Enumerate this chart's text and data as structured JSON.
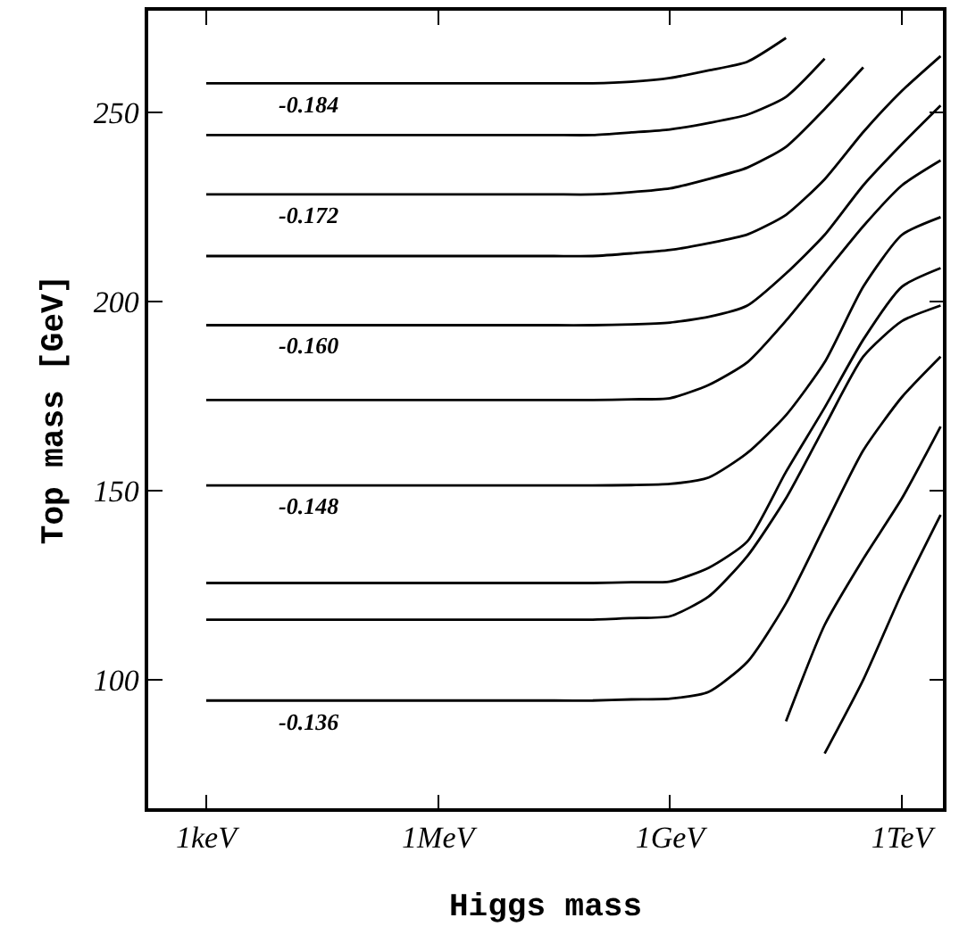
{
  "chart_data": {
    "type": "line",
    "xlabel": "Higgs mass",
    "ylabel": "Top mass [GeV]",
    "grid": false,
    "marker": "none",
    "line_style": "solid",
    "categories": [
      "1keV",
      null,
      null,
      null,
      null,
      null,
      "1MeV",
      null,
      null,
      null,
      null,
      null,
      "1GeV",
      null,
      null,
      null,
      null,
      null,
      "1TeV",
      null
    ],
    "ylim": [
      66,
      277
    ],
    "yticks": [
      100,
      150,
      200,
      250
    ],
    "series": [
      {
        "color": "#000000",
        "values": [
          257.8,
          257.8,
          257.8,
          257.8,
          257.8,
          257.8,
          257.8,
          257.8,
          257.8,
          257.8,
          257.8,
          258.2,
          259.2,
          261.2,
          263.5,
          269.8,
          null,
          null,
          null,
          null
        ]
      },
      {
        "color": "#000000",
        "values": [
          244.1,
          244.1,
          244.1,
          244.1,
          244.1,
          244.1,
          244.1,
          244.1,
          244.1,
          244.1,
          244.1,
          244.8,
          245.6,
          247.3,
          249.5,
          254.2,
          264.3,
          null,
          null,
          null
        ]
      },
      {
        "color": "#000000",
        "values": [
          228.4,
          228.4,
          228.4,
          228.4,
          228.4,
          228.4,
          228.4,
          228.4,
          228.4,
          228.4,
          228.4,
          229,
          230,
          232.5,
          235.5,
          241,
          251,
          262,
          null,
          null
        ]
      },
      {
        "color": "#000000",
        "values": [
          212.1,
          212.1,
          212.1,
          212.1,
          212.1,
          212.1,
          212.1,
          212.1,
          212.1,
          212.1,
          212.1,
          212.8,
          213.7,
          215.5,
          217.8,
          223,
          232.4,
          244.9,
          255.8,
          265
        ]
      },
      {
        "color": "#000000",
        "values": [
          193.8,
          193.8,
          193.8,
          193.8,
          193.8,
          193.8,
          193.8,
          193.8,
          193.8,
          193.8,
          193.8,
          194,
          194.5,
          196,
          199,
          207.5,
          217.7,
          230.8,
          241.7,
          251.9
        ]
      },
      {
        "color": "#000000",
        "values": [
          174,
          174,
          174,
          174,
          174,
          174,
          174,
          174,
          174,
          174,
          174,
          174.2,
          174.5,
          178,
          184,
          195,
          207.5,
          220,
          230.8,
          237.4
        ]
      },
      {
        "color": "#000000",
        "values": [
          151.4,
          151.4,
          151.4,
          151.4,
          151.4,
          151.4,
          151.4,
          151.4,
          151.4,
          151.4,
          151.4,
          151.5,
          151.8,
          153.5,
          160,
          170,
          184,
          204,
          217.7,
          222.4
        ]
      },
      {
        "color": "#000000",
        "values": [
          125.6,
          125.6,
          125.6,
          125.6,
          125.6,
          125.6,
          125.6,
          125.6,
          125.6,
          125.6,
          125.6,
          125.8,
          126,
          129.6,
          136.6,
          155,
          172,
          190,
          204,
          208.9
        ]
      },
      {
        "color": "#000000",
        "values": [
          115.9,
          115.9,
          115.9,
          115.9,
          115.9,
          115.9,
          115.9,
          115.9,
          115.9,
          115.9,
          115.9,
          116.3,
          116.8,
          122,
          132.7,
          148,
          167,
          185.5,
          194.9,
          199
        ]
      },
      {
        "color": "#000000",
        "values": [
          94.5,
          94.5,
          94.5,
          94.5,
          94.5,
          94.5,
          94.5,
          94.5,
          94.5,
          94.5,
          94.5,
          94.8,
          95,
          96.8,
          104.7,
          120.2,
          140.6,
          160.7,
          174.8,
          185.5
        ]
      },
      {
        "color": "#000000",
        "values": [
          null,
          null,
          null,
          null,
          null,
          null,
          null,
          null,
          null,
          null,
          null,
          null,
          null,
          null,
          null,
          89,
          114.5,
          132,
          148,
          167
        ]
      },
      {
        "color": "#000000",
        "values": [
          null,
          null,
          null,
          null,
          null,
          null,
          null,
          null,
          null,
          null,
          null,
          null,
          null,
          null,
          null,
          null,
          80.5,
          100,
          123,
          143.6
        ]
      }
    ],
    "annotations": [
      {
        "text": "-0.184",
        "y": 257.8
      },
      {
        "text": "-0.172",
        "y": 228.4
      },
      {
        "text": "-0.160",
        "y": 193.8
      },
      {
        "text": "-0.148",
        "y": 151.4
      },
      {
        "text": "-0.136",
        "y": 94.5
      }
    ]
  }
}
